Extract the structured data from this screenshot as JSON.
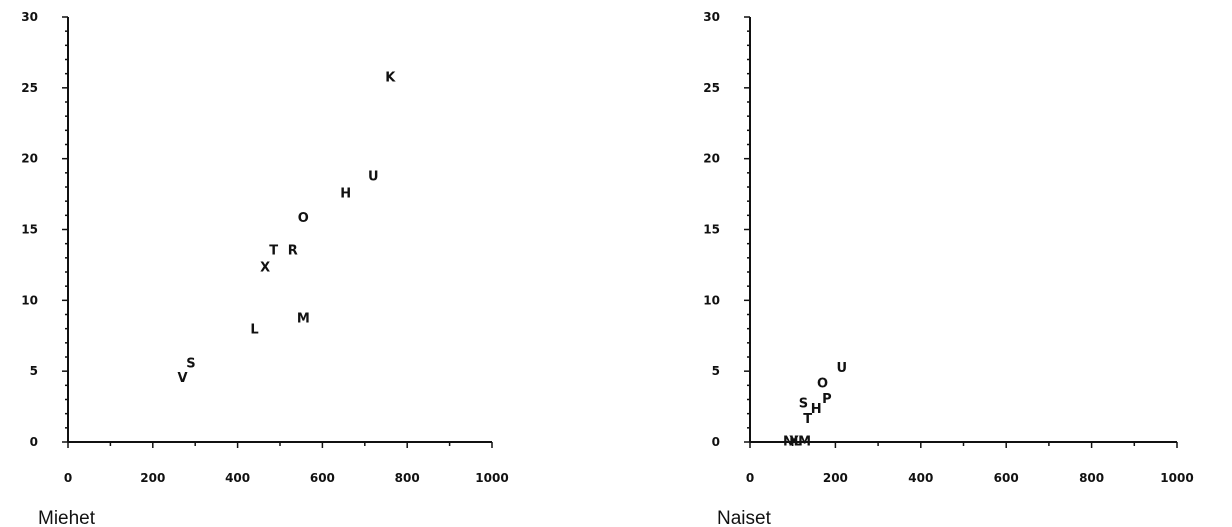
{
  "chart_data": [
    {
      "type": "scatter",
      "title": "",
      "xlabel": "Miehet",
      "ylabel": "",
      "xlim": [
        0,
        1000
      ],
      "ylim": [
        0,
        30
      ],
      "xticks": [
        0,
        200,
        400,
        600,
        800,
        1000
      ],
      "yticks": [
        0,
        5,
        10,
        15,
        20,
        25,
        30
      ],
      "grid": false,
      "points": [
        {
          "label": "V",
          "x": 270,
          "y": 4.6
        },
        {
          "label": "S",
          "x": 290,
          "y": 5.6
        },
        {
          "label": "L",
          "x": 440,
          "y": 8.0
        },
        {
          "label": "M",
          "x": 555,
          "y": 8.8
        },
        {
          "label": "X",
          "x": 465,
          "y": 12.4
        },
        {
          "label": "T",
          "x": 485,
          "y": 13.6
        },
        {
          "label": "R",
          "x": 530,
          "y": 13.6
        },
        {
          "label": "O",
          "x": 555,
          "y": 15.9
        },
        {
          "label": "H",
          "x": 655,
          "y": 17.6
        },
        {
          "label": "U",
          "x": 720,
          "y": 18.8
        },
        {
          "label": "K",
          "x": 760,
          "y": 25.8
        }
      ]
    },
    {
      "type": "scatter",
      "title": "",
      "xlabel": "Naiset",
      "ylabel": "",
      "xlim": [
        0,
        1000
      ],
      "ylim": [
        0,
        30
      ],
      "xticks": [
        0,
        200,
        400,
        600,
        800,
        1000
      ],
      "yticks": [
        0,
        5,
        10,
        15,
        20,
        25,
        30
      ],
      "grid": false,
      "points": [
        {
          "label": "U",
          "x": 215,
          "y": 5.3
        },
        {
          "label": "O",
          "x": 170,
          "y": 4.2
        },
        {
          "label": "P",
          "x": 180,
          "y": 3.1
        },
        {
          "label": "S",
          "x": 125,
          "y": 2.8
        },
        {
          "label": "H",
          "x": 155,
          "y": 2.4
        },
        {
          "label": "T",
          "x": 135,
          "y": 1.7
        },
        {
          "label": "N",
          "x": 90,
          "y": 0.1
        },
        {
          "label": "X",
          "x": 103,
          "y": 0.1
        },
        {
          "label": "L",
          "x": 112,
          "y": 0.1
        },
        {
          "label": "M",
          "x": 128,
          "y": 0.1
        }
      ]
    }
  ]
}
